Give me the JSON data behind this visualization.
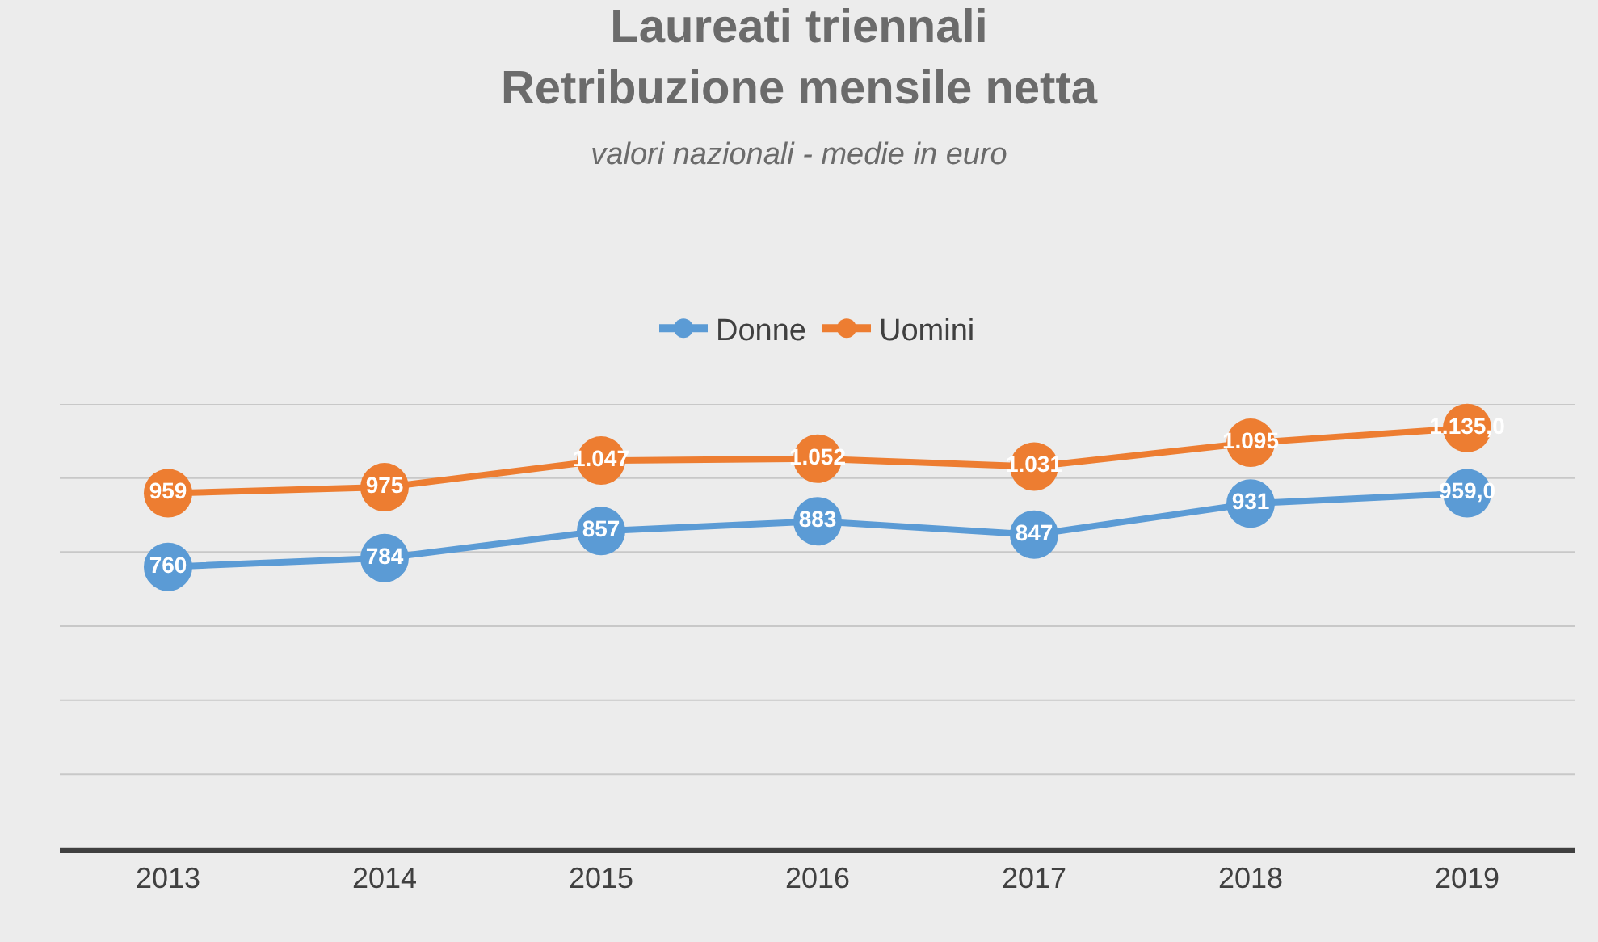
{
  "chart_data": {
    "type": "line",
    "title": "Laureati triennali\nRetribuzione mensile netta",
    "subtitle": "valori nazionali - medie in euro",
    "categories": [
      "2013",
      "2014",
      "2015",
      "2016",
      "2017",
      "2018",
      "2019"
    ],
    "series": [
      {
        "name": "Donne",
        "color": "#5b9bd5",
        "values": [
          760,
          784,
          857,
          883,
          847,
          931,
          959
        ],
        "value_labels": [
          "760",
          "784",
          "857",
          "883",
          "847",
          "931",
          "959,0"
        ]
      },
      {
        "name": "Uomini",
        "color": "#ed7d31",
        "values": [
          959,
          975,
          1047,
          1052,
          1031,
          1095,
          1135
        ],
        "value_labels": [
          "959",
          "975",
          "1.047",
          "1.052",
          "1.031",
          "1.095",
          "1.135,0"
        ]
      }
    ],
    "ylim": [
      0,
      1200
    ],
    "yticks": [
      {
        "value": 0,
        "label": null
      },
      {
        "value": 200,
        "label": null
      },
      {
        "value": 400,
        "label": null
      },
      {
        "value": 600,
        "label": null
      },
      {
        "value": 800,
        "label": null
      },
      {
        "value": 1000,
        "label": null
      },
      {
        "value": 1200,
        "label": null
      }
    ],
    "tick_labels": "x",
    "grid": "y",
    "legend": "top",
    "marker": "circle",
    "line_style": "solid"
  }
}
